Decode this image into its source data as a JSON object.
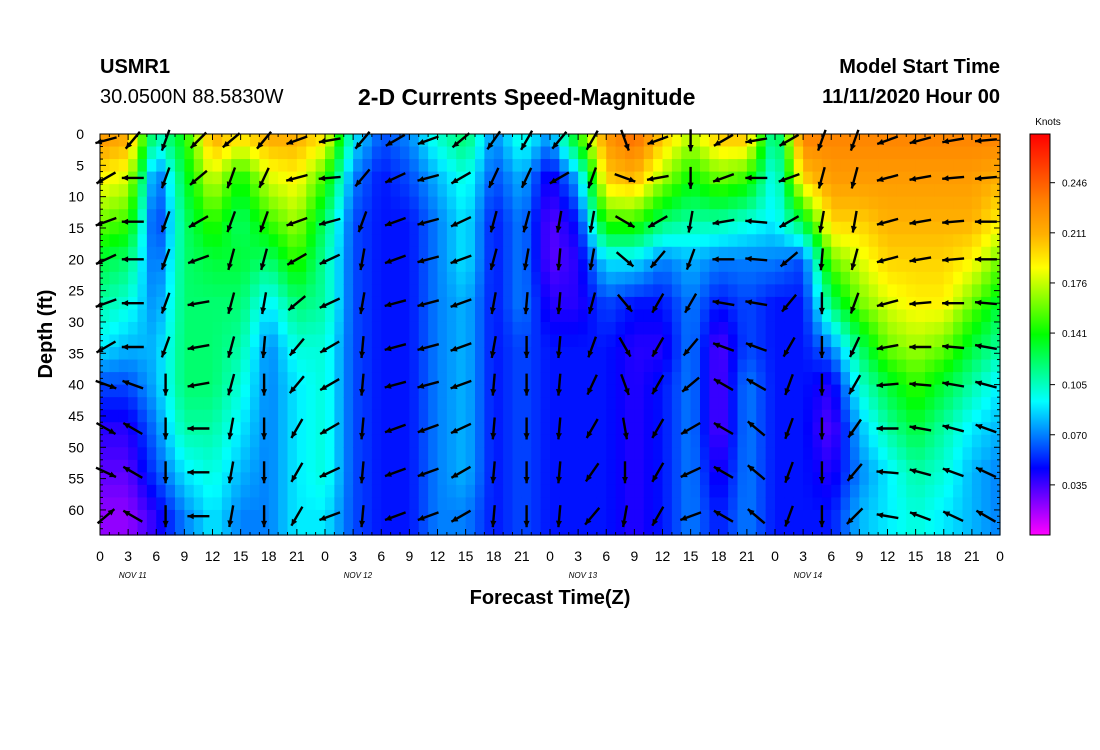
{
  "header": {
    "station": "USMR1",
    "coordinates": "30.0500N 88.5830W",
    "title": "2-D Currents Speed-Magnitude",
    "start_label": "Model Start Time",
    "start_value": "11/11/2020 Hour 00"
  },
  "chart_data": {
    "type": "heatmap",
    "title": "2-D Currents Speed-Magnitude",
    "xlabel": "Forecast Time(Z)",
    "ylabel": "Depth (ft)",
    "x_tick_labels": [
      "0",
      "3",
      "6",
      "9",
      "12",
      "15",
      "18",
      "21",
      "0",
      "3",
      "6",
      "9",
      "12",
      "15",
      "18",
      "21",
      "0",
      "3",
      "6",
      "9",
      "12",
      "15",
      "18",
      "21",
      "0",
      "3",
      "6",
      "9",
      "12",
      "15",
      "18",
      "21",
      "0"
    ],
    "x_range_hours": [
      0,
      96
    ],
    "day_labels": [
      "NOV 11",
      "NOV 12",
      "NOV 13",
      "NOV 14"
    ],
    "y_ticks": [
      0,
      5,
      10,
      15,
      20,
      25,
      30,
      35,
      40,
      45,
      50,
      55,
      60
    ],
    "y_range": [
      0,
      64
    ],
    "y_inverted": true,
    "colorbar": {
      "unit": "Knots",
      "ticks": [
        "0.246",
        "0.211",
        "0.176",
        "0.141",
        "0.105",
        "0.070",
        "0.035"
      ],
      "range": [
        0,
        0.28
      ],
      "colors": [
        "#ff00ff",
        "#8000ff",
        "#0000ff",
        "#0080ff",
        "#00ffff",
        "#00ff80",
        "#00ff00",
        "#80ff00",
        "#ffff00",
        "#ffb000",
        "#ff8000",
        "#ff4000",
        "#ff0000"
      ]
    },
    "arrow_times_hours": [
      0,
      3.5,
      7,
      10.5,
      14,
      17.5,
      21,
      24.5,
      28,
      31.5,
      35,
      38.5,
      42,
      45.5,
      49,
      52.5,
      56,
      59.5,
      63,
      66.5,
      70,
      73.5,
      77,
      80.5,
      84,
      87.5,
      91,
      94.5
    ],
    "arrow_depths_ft": [
      1,
      7,
      14,
      20,
      27,
      34,
      40,
      47,
      54,
      61
    ],
    "speed_profiles": [
      {
        "t": 0,
        "speeds": [
          0.22,
          0.19,
          0.16,
          0.13,
          0.11,
          0.09,
          0.06,
          0.04,
          0.03,
          0.02
        ]
      },
      {
        "t": 3,
        "speeds": [
          0.21,
          0.18,
          0.15,
          0.12,
          0.1,
          0.08,
          0.06,
          0.04,
          0.03,
          0.02
        ]
      },
      {
        "t": 6,
        "speeds": [
          0.1,
          0.06,
          0.05,
          0.06,
          0.07,
          0.08,
          0.08,
          0.07,
          0.06,
          0.04
        ]
      },
      {
        "t": 9,
        "speeds": [
          0.14,
          0.13,
          0.12,
          0.12,
          0.12,
          0.12,
          0.12,
          0.11,
          0.09,
          0.07
        ]
      },
      {
        "t": 12,
        "speeds": [
          0.21,
          0.18,
          0.15,
          0.13,
          0.12,
          0.12,
          0.12,
          0.11,
          0.1,
          0.09
        ]
      },
      {
        "t": 15,
        "speeds": [
          0.19,
          0.14,
          0.12,
          0.13,
          0.12,
          0.11,
          0.1,
          0.09,
          0.08,
          0.07
        ]
      },
      {
        "t": 18,
        "speeds": [
          0.21,
          0.18,
          0.15,
          0.12,
          0.09,
          0.07,
          0.07,
          0.07,
          0.07,
          0.07
        ]
      },
      {
        "t": 21,
        "speeds": [
          0.21,
          0.19,
          0.17,
          0.15,
          0.12,
          0.1,
          0.09,
          0.09,
          0.09,
          0.09
        ]
      },
      {
        "t": 24,
        "speeds": [
          0.19,
          0.15,
          0.12,
          0.11,
          0.11,
          0.1,
          0.1,
          0.1,
          0.1,
          0.09
        ]
      },
      {
        "t": 27,
        "speeds": [
          0.09,
          0.07,
          0.06,
          0.06,
          0.06,
          0.06,
          0.06,
          0.06,
          0.06,
          0.06
        ]
      },
      {
        "t": 30,
        "speeds": [
          0.06,
          0.05,
          0.05,
          0.05,
          0.05,
          0.05,
          0.05,
          0.05,
          0.05,
          0.05
        ]
      },
      {
        "t": 33,
        "speeds": [
          0.07,
          0.06,
          0.05,
          0.05,
          0.05,
          0.05,
          0.05,
          0.05,
          0.05,
          0.05
        ]
      },
      {
        "t": 36,
        "speeds": [
          0.1,
          0.08,
          0.07,
          0.07,
          0.07,
          0.07,
          0.07,
          0.07,
          0.07,
          0.07
        ]
      },
      {
        "t": 39,
        "speeds": [
          0.12,
          0.1,
          0.09,
          0.09,
          0.08,
          0.08,
          0.08,
          0.08,
          0.08,
          0.07
        ]
      },
      {
        "t": 42,
        "speeds": [
          0.07,
          0.06,
          0.05,
          0.05,
          0.05,
          0.05,
          0.05,
          0.05,
          0.05,
          0.05
        ]
      },
      {
        "t": 45,
        "speeds": [
          0.1,
          0.08,
          0.07,
          0.07,
          0.07,
          0.06,
          0.06,
          0.06,
          0.06,
          0.06
        ]
      },
      {
        "t": 48,
        "speeds": [
          0.07,
          0.04,
          0.03,
          0.03,
          0.04,
          0.05,
          0.05,
          0.05,
          0.05,
          0.05
        ]
      },
      {
        "t": 51,
        "speeds": [
          0.14,
          0.08,
          0.05,
          0.04,
          0.04,
          0.05,
          0.05,
          0.05,
          0.05,
          0.05
        ]
      },
      {
        "t": 54,
        "speeds": [
          0.22,
          0.2,
          0.15,
          0.09,
          0.06,
          0.05,
          0.05,
          0.05,
          0.05,
          0.05
        ]
      },
      {
        "t": 57,
        "speeds": [
          0.24,
          0.21,
          0.15,
          0.09,
          0.05,
          0.04,
          0.04,
          0.04,
          0.04,
          0.04
        ]
      },
      {
        "t": 60,
        "speeds": [
          0.2,
          0.17,
          0.12,
          0.07,
          0.05,
          0.04,
          0.05,
          0.05,
          0.05,
          0.05
        ]
      },
      {
        "t": 63,
        "speeds": [
          0.17,
          0.14,
          0.11,
          0.08,
          0.07,
          0.07,
          0.07,
          0.07,
          0.07,
          0.07
        ]
      },
      {
        "t": 66,
        "speeds": [
          0.2,
          0.16,
          0.11,
          0.07,
          0.05,
          0.03,
          0.03,
          0.03,
          0.04,
          0.05
        ]
      },
      {
        "t": 69,
        "speeds": [
          0.2,
          0.15,
          0.1,
          0.07,
          0.06,
          0.06,
          0.07,
          0.07,
          0.07,
          0.07
        ]
      },
      {
        "t": 72,
        "speeds": [
          0.1,
          0.09,
          0.09,
          0.07,
          0.05,
          0.05,
          0.05,
          0.05,
          0.05,
          0.05
        ]
      },
      {
        "t": 75,
        "speeds": [
          0.23,
          0.2,
          0.13,
          0.06,
          0.05,
          0.05,
          0.05,
          0.05,
          0.05,
          0.05
        ]
      },
      {
        "t": 78,
        "speeds": [
          0.23,
          0.22,
          0.2,
          0.16,
          0.12,
          0.07,
          0.04,
          0.03,
          0.04,
          0.05
        ]
      },
      {
        "t": 81,
        "speeds": [
          0.23,
          0.22,
          0.2,
          0.18,
          0.16,
          0.12,
          0.1,
          0.08,
          0.07,
          0.08
        ]
      },
      {
        "t": 84,
        "speeds": [
          0.23,
          0.22,
          0.21,
          0.2,
          0.18,
          0.16,
          0.13,
          0.11,
          0.09,
          0.09
        ]
      },
      {
        "t": 87,
        "speeds": [
          0.23,
          0.22,
          0.21,
          0.2,
          0.19,
          0.17,
          0.15,
          0.13,
          0.11,
          0.1
        ]
      },
      {
        "t": 90,
        "speeds": [
          0.23,
          0.22,
          0.21,
          0.2,
          0.19,
          0.16,
          0.13,
          0.11,
          0.1,
          0.09
        ]
      },
      {
        "t": 93,
        "speeds": [
          0.23,
          0.22,
          0.21,
          0.19,
          0.16,
          0.13,
          0.11,
          0.09,
          0.08,
          0.08
        ]
      },
      {
        "t": 96,
        "speeds": [
          0.23,
          0.21,
          0.19,
          0.16,
          0.13,
          0.11,
          0.09,
          0.08,
          0.07,
          0.07
        ]
      }
    ],
    "direction_profiles_deg": [
      {
        "t": 0,
        "dirs": [
          255,
          240,
          250,
          245,
          250,
          240,
          110,
          120,
          115,
          50
        ]
      },
      {
        "t": 3.5,
        "dirs": [
          220,
          270,
          270,
          270,
          270,
          270,
          290,
          300,
          300,
          300
        ]
      },
      {
        "t": 7,
        "dirs": [
          200,
          200,
          200,
          200,
          200,
          200,
          180,
          180,
          180,
          180
        ]
      },
      {
        "t": 10.5,
        "dirs": [
          225,
          230,
          240,
          250,
          260,
          260,
          260,
          270,
          270,
          270
        ]
      },
      {
        "t": 14,
        "dirs": [
          230,
          200,
          200,
          195,
          195,
          195,
          195,
          190,
          190,
          190
        ]
      },
      {
        "t": 17.5,
        "dirs": [
          220,
          205,
          200,
          195,
          190,
          185,
          180,
          180,
          180,
          180
        ]
      },
      {
        "t": 21,
        "dirs": [
          250,
          255,
          250,
          240,
          230,
          220,
          220,
          210,
          210,
          210
        ]
      },
      {
        "t": 24.5,
        "dirs": [
          260,
          265,
          255,
          245,
          245,
          240,
          240,
          240,
          245,
          250
        ]
      },
      {
        "t": 28,
        "dirs": [
          220,
          220,
          200,
          190,
          190,
          185,
          185,
          185,
          185,
          185
        ]
      },
      {
        "t": 31.5,
        "dirs": [
          240,
          245,
          250,
          250,
          255,
          255,
          255,
          250,
          250,
          250
        ]
      },
      {
        "t": 35,
        "dirs": [
          250,
          255,
          255,
          255,
          255,
          255,
          255,
          250,
          250,
          250
        ]
      },
      {
        "t": 38.5,
        "dirs": [
          230,
          240,
          245,
          250,
          250,
          250,
          250,
          245,
          240,
          240
        ]
      },
      {
        "t": 42,
        "dirs": [
          215,
          205,
          195,
          195,
          190,
          190,
          185,
          185,
          185,
          185
        ]
      },
      {
        "t": 45.5,
        "dirs": [
          210,
          205,
          195,
          190,
          185,
          180,
          180,
          180,
          180,
          180
        ]
      },
      {
        "t": 49,
        "dirs": [
          220,
          240,
          190,
          185,
          185,
          185,
          185,
          185,
          185,
          185
        ]
      },
      {
        "t": 52.5,
        "dirs": [
          210,
          200,
          190,
          190,
          195,
          200,
          205,
          210,
          215,
          220
        ]
      },
      {
        "t": 56,
        "dirs": [
          160,
          110,
          120,
          130,
          140,
          150,
          160,
          170,
          180,
          190
        ]
      },
      {
        "t": 59.5,
        "dirs": [
          250,
          260,
          240,
          220,
          210,
          210,
          210,
          210,
          210,
          210
        ]
      },
      {
        "t": 63,
        "dirs": [
          180,
          180,
          190,
          200,
          210,
          220,
          230,
          240,
          245,
          250
        ]
      },
      {
        "t": 66.5,
        "dirs": [
          240,
          250,
          260,
          270,
          280,
          290,
          300,
          300,
          300,
          300
        ]
      },
      {
        "t": 70,
        "dirs": [
          260,
          270,
          275,
          275,
          280,
          290,
          300,
          310,
          310,
          310
        ]
      },
      {
        "t": 73.5,
        "dirs": [
          240,
          250,
          240,
          230,
          220,
          210,
          200,
          200,
          200,
          200
        ]
      },
      {
        "t": 77,
        "dirs": [
          200,
          195,
          190,
          185,
          180,
          180,
          180,
          180,
          180,
          180
        ]
      },
      {
        "t": 80.5,
        "dirs": [
          200,
          195,
          190,
          195,
          200,
          205,
          210,
          215,
          220,
          225
        ]
      },
      {
        "t": 84,
        "dirs": [
          250,
          255,
          255,
          255,
          255,
          260,
          265,
          270,
          275,
          280
        ]
      },
      {
        "t": 87.5,
        "dirs": [
          255,
          260,
          260,
          260,
          265,
          270,
          275,
          280,
          285,
          290
        ]
      },
      {
        "t": 91,
        "dirs": [
          260,
          265,
          265,
          265,
          270,
          275,
          280,
          285,
          290,
          295
        ]
      },
      {
        "t": 94.5,
        "dirs": [
          265,
          265,
          270,
          270,
          275,
          280,
          285,
          290,
          295,
          300
        ]
      }
    ]
  }
}
